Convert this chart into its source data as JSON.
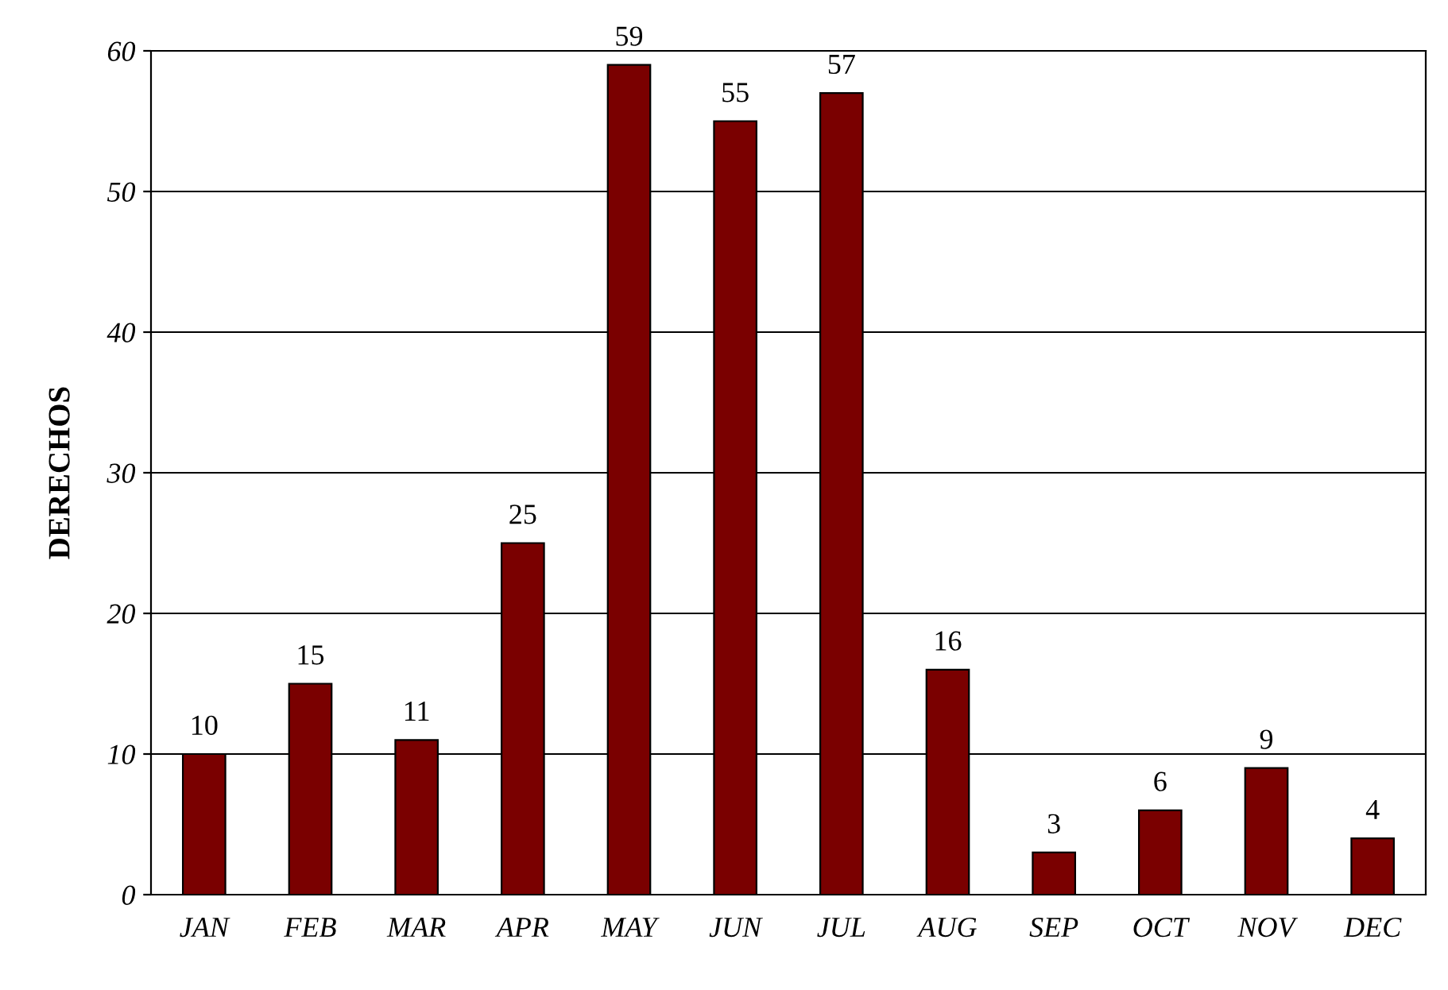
{
  "chart_data": {
    "type": "bar",
    "ylabel": "DERECHOS",
    "categories": [
      "JAN",
      "FEB",
      "MAR",
      "APR",
      "MAY",
      "JUN",
      "JUL",
      "AUG",
      "SEP",
      "OCT",
      "NOV",
      "DEC"
    ],
    "values": [
      10,
      15,
      11,
      25,
      59,
      55,
      57,
      16,
      3,
      6,
      9,
      4
    ],
    "color": "#7a0000",
    "ylim": [
      0,
      60
    ],
    "yticks": [
      0,
      10,
      20,
      30,
      40,
      50,
      60
    ],
    "grid": "y",
    "data_labels": true
  }
}
